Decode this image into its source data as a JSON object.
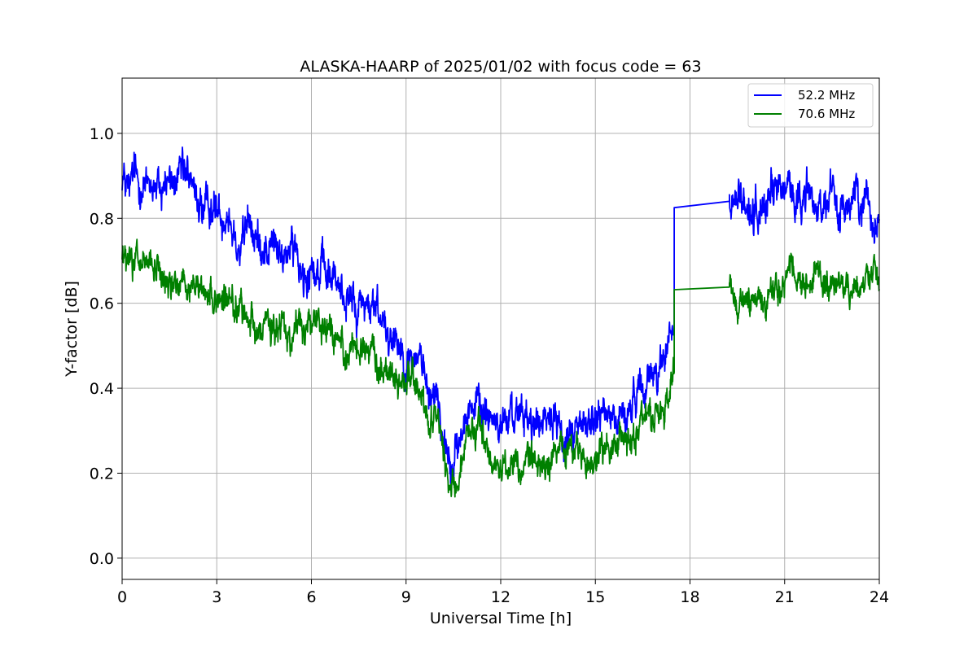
{
  "chart_data": {
    "type": "line",
    "title": "ALASKA-HAARP of 2025/01/02 with focus code = 63",
    "xlabel": "Universal Time [h]",
    "ylabel": "Y-factor [dB]",
    "xlim": [
      0,
      24
    ],
    "ylim": [
      -0.05,
      1.13
    ],
    "xticks": [
      0,
      3,
      6,
      9,
      12,
      15,
      18,
      21,
      24
    ],
    "xtick_labels": [
      "0",
      "3",
      "6",
      "9",
      "12",
      "15",
      "18",
      "21",
      "24"
    ],
    "yticks": [
      0.0,
      0.2,
      0.4,
      0.6,
      0.8,
      1.0
    ],
    "ytick_labels": [
      "0.0",
      "0.2",
      "0.4",
      "0.6",
      "0.8",
      "1.0"
    ],
    "grid": true,
    "legend_position": "top-right",
    "gap": [
      17.5,
      19.25
    ],
    "series": [
      {
        "name": "52.2 MHz",
        "color": "#0000ff",
        "base_profile": {
          "x": [
            0,
            1,
            2,
            3,
            4,
            5,
            6,
            7,
            8,
            9,
            10,
            10.4,
            11,
            12,
            13,
            14,
            15,
            16,
            17,
            17.5
          ],
          "y": [
            0.9,
            0.88,
            0.86,
            0.82,
            0.77,
            0.72,
            0.69,
            0.63,
            0.57,
            0.5,
            0.38,
            0.22,
            0.36,
            0.34,
            0.3,
            0.31,
            0.32,
            0.36,
            0.46,
            0.55
          ]
        },
        "gap_connector": {
          "x": [
            17.5,
            19.25
          ],
          "y": [
            0.825,
            0.84
          ]
        },
        "segment2_profile": {
          "x": [
            19.25,
            20,
            21,
            22,
            23,
            24
          ],
          "y": [
            0.84,
            0.82,
            0.86,
            0.84,
            0.83,
            0.82
          ]
        },
        "noise_amplitude": 0.09,
        "range": {
          "y_min": 0.0,
          "y_max": 1.08
        }
      },
      {
        "name": "70.6 MHz",
        "color": "#008000",
        "base_profile": {
          "x": [
            0,
            1,
            2,
            3,
            4,
            5,
            6,
            7,
            8,
            9,
            10,
            10.4,
            11,
            12,
            13,
            14,
            15,
            16,
            17,
            17.5
          ],
          "y": [
            0.71,
            0.67,
            0.64,
            0.62,
            0.58,
            0.54,
            0.53,
            0.51,
            0.47,
            0.42,
            0.33,
            0.16,
            0.28,
            0.24,
            0.22,
            0.25,
            0.24,
            0.27,
            0.35,
            0.42
          ]
        },
        "gap_connector": {
          "x": [
            17.5,
            19.25
          ],
          "y": [
            0.632,
            0.638
          ]
        },
        "segment2_profile": {
          "x": [
            19.25,
            20,
            21,
            22,
            23,
            24
          ],
          "y": [
            0.64,
            0.6,
            0.66,
            0.66,
            0.64,
            0.64
          ]
        },
        "noise_amplitude": 0.075,
        "range": {
          "y_min": 0.01,
          "y_max": 0.89
        }
      }
    ]
  }
}
